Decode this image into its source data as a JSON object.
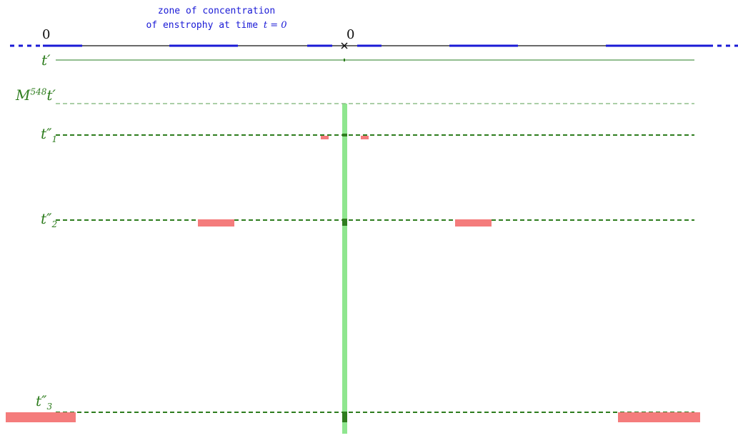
{
  "annotation": {
    "line1": "zone of concentration",
    "line2_prefix": "of enstrophy at time ",
    "line2_math": "t = 0"
  },
  "axis_labels": {
    "left_zero": "0",
    "center_zero": "0"
  },
  "time_labels": {
    "t_prime": {
      "base": "t",
      "mark": "′"
    },
    "m_t_prime": {
      "base": "M",
      "sup": "548",
      "tail": "t′"
    },
    "t1": {
      "base": "t",
      "mark": "″",
      "sub": "1"
    },
    "t2": {
      "base": "t",
      "mark": "″",
      "sub": "2"
    },
    "t3": {
      "base": "t",
      "mark": "″",
      "sub": "3"
    }
  },
  "colors": {
    "blue": "#1a1ad6",
    "green_dark": "#2e7d1e",
    "green_light": "#6fa86a",
    "band_green": "#7be07b",
    "red": "#f47c7c"
  }
}
